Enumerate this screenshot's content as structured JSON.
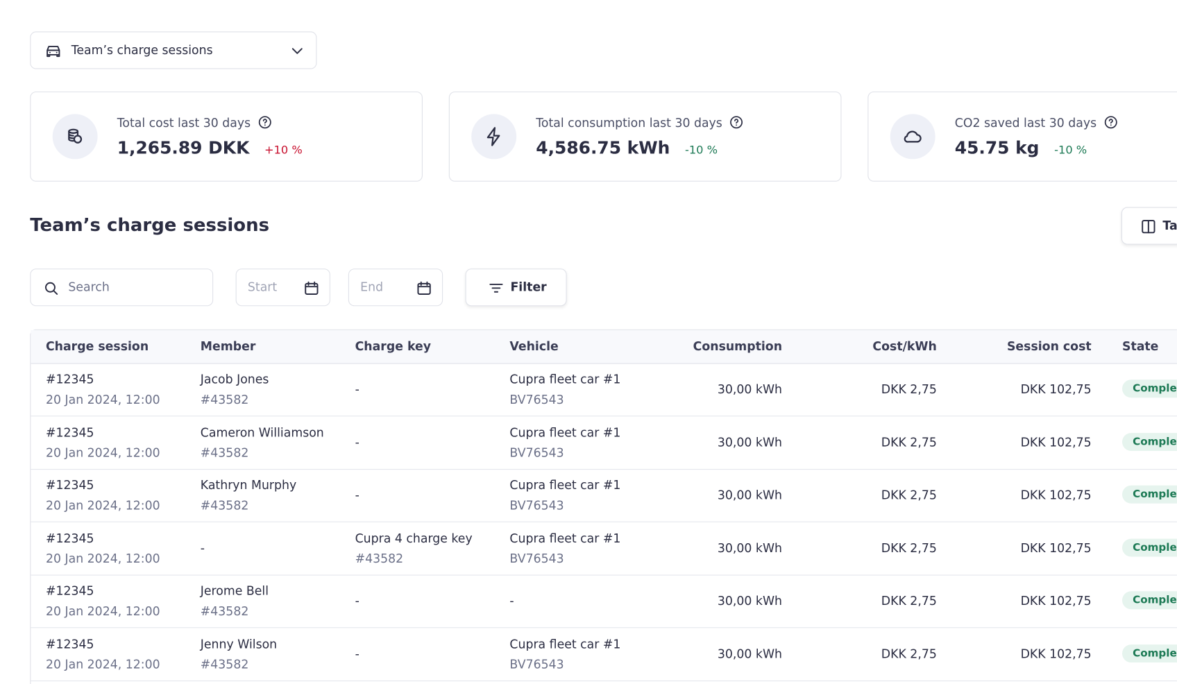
{
  "header": {
    "dropdown": "Team’s charge sessions"
  },
  "stats": [
    {
      "label": "Total cost last 30 days",
      "value": "1,265.89 DKK",
      "change": "+10 %",
      "trend": "up"
    },
    {
      "label": "Total consumption last 30 days",
      "value": "4,586.75 kWh",
      "change": "-10 %",
      "trend": "down"
    },
    {
      "label": "CO2 saved last 30 days",
      "value": "45.75 kg",
      "change": "-10 %",
      "trend": "down"
    }
  ],
  "section": {
    "title": "Team’s charge sessions",
    "button": "Ta"
  },
  "toolbar": {
    "search": "Search",
    "start": "Start",
    "end": "End",
    "filter": "Filter"
  },
  "table": {
    "columns": [
      "Charge session",
      "Member",
      "Charge key",
      "Vehicle",
      "Consumption",
      "Cost/kWh",
      "Session cost",
      "State"
    ],
    "rows": [
      [
        [
          "#12345",
          "20 Jan 2024, 12:00"
        ],
        [
          "Jacob Jones",
          "#43582"
        ],
        [
          "-"
        ],
        [
          "Cupra fleet car #1",
          "BV76543"
        ],
        [
          "30,00 kWh"
        ],
        [
          "DKK 2,75"
        ],
        [
          "DKK 102,75"
        ],
        [
          "Complete"
        ]
      ],
      [
        [
          "#12345",
          "20 Jan 2024, 12:00"
        ],
        [
          "Cameron Williamson",
          "#43582"
        ],
        [
          "-"
        ],
        [
          "Cupra fleet car #1",
          "BV76543"
        ],
        [
          "30,00 kWh"
        ],
        [
          "DKK 2,75"
        ],
        [
          "DKK 102,75"
        ],
        [
          "Complete"
        ]
      ],
      [
        [
          "#12345",
          "20 Jan 2024, 12:00"
        ],
        [
          "Kathryn Murphy",
          "#43582"
        ],
        [
          "-"
        ],
        [
          "Cupra fleet car #1",
          "BV76543"
        ],
        [
          "30,00 kWh"
        ],
        [
          "DKK 2,75"
        ],
        [
          "DKK 102,75"
        ],
        [
          "Complete"
        ]
      ],
      [
        [
          "#12345",
          "20 Jan 2024, 12:00"
        ],
        [
          "-"
        ],
        [
          "Cupra 4 charge key",
          "#43582"
        ],
        [
          "Cupra fleet car #1",
          "BV76543"
        ],
        [
          "30,00 kWh"
        ],
        [
          "DKK 2,75"
        ],
        [
          "DKK 102,75"
        ],
        [
          "Complete"
        ]
      ],
      [
        [
          "#12345",
          "20 Jan 2024, 12:00"
        ],
        [
          "Jerome Bell",
          "#43582"
        ],
        [
          "-"
        ],
        [
          "-"
        ],
        [
          "30,00 kWh"
        ],
        [
          "DKK 2,75"
        ],
        [
          "DKK 102,75"
        ],
        [
          "Complete"
        ]
      ],
      [
        [
          "#12345",
          "20 Jan 2024, 12:00"
        ],
        [
          "Jenny Wilson",
          "#43582"
        ],
        [
          "-"
        ],
        [
          "Cupra fleet car #1",
          "BV76543"
        ],
        [
          "30,00 kWh"
        ],
        [
          "DKK 2,75"
        ],
        [
          "DKK 102,75"
        ],
        [
          "Complete"
        ]
      ]
    ]
  }
}
